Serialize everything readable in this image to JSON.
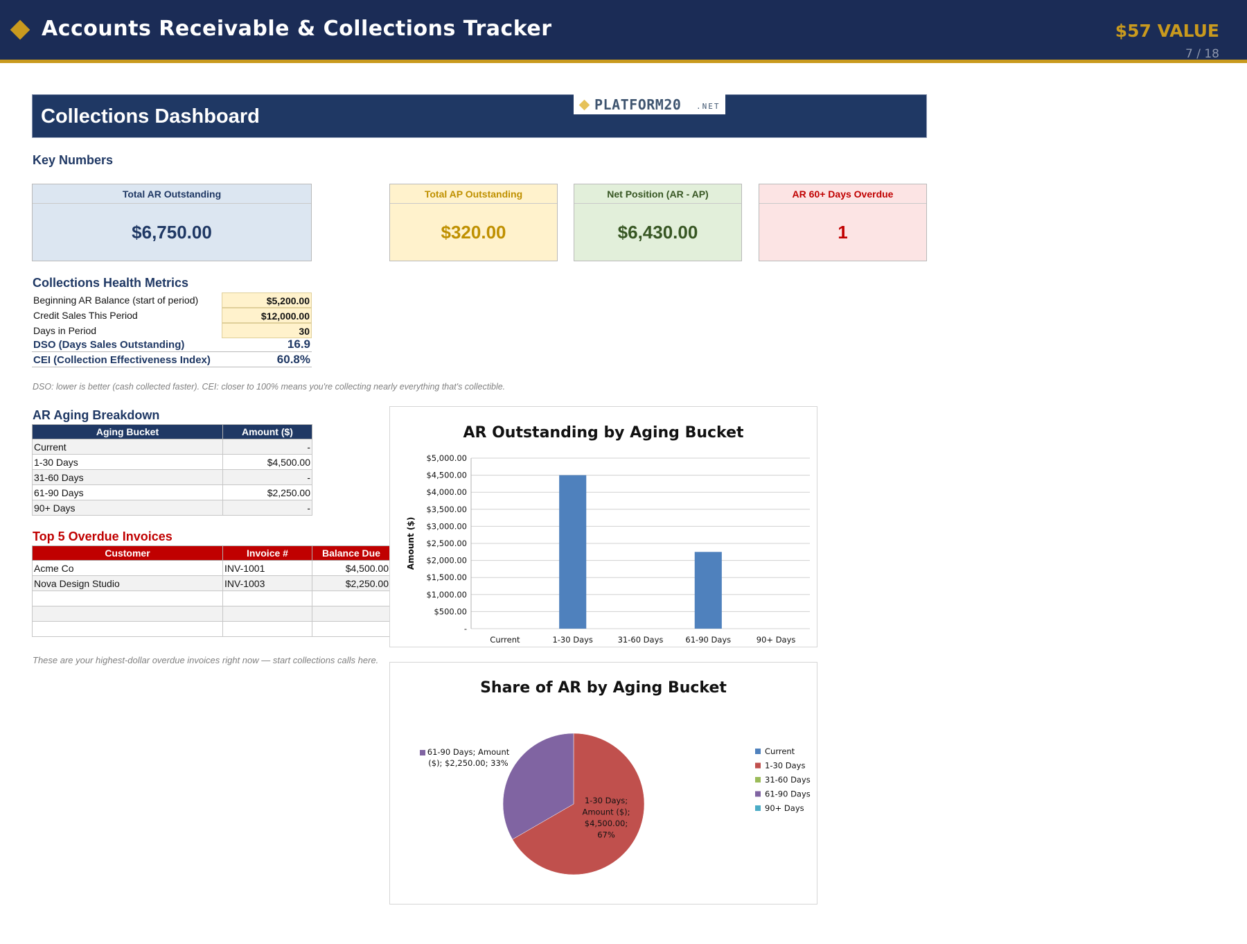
{
  "header": {
    "title": "Accounts Receivable & Collections Tracker",
    "value_tag": "$57 VALUE",
    "page_count": "7 / 18"
  },
  "dashboard": {
    "title": "Collections Dashboard",
    "logo_text": "PLATFORM20",
    "logo_suffix": ".NET"
  },
  "key_numbers": {
    "title": "Key Numbers",
    "cards": [
      {
        "label": "Total AR Outstanding",
        "value": "$6,750.00",
        "bg": "#dce6f1",
        "fg": "#1f3864"
      },
      {
        "label": "Total AP Outstanding",
        "value": "$320.00",
        "bg": "#fff2cc",
        "fg": "#bf9000"
      },
      {
        "label": "Net Position (AR - AP)",
        "value": "$6,430.00",
        "bg": "#e2efda",
        "fg": "#375623"
      },
      {
        "label": "AR 60+ Days Overdue",
        "value": "1",
        "bg": "#fce4e4",
        "fg": "#c00000"
      }
    ]
  },
  "health": {
    "title": "Collections Health Metrics",
    "rows": [
      {
        "label": "Beginning AR Balance (start of period)",
        "value": "$5,200.00"
      },
      {
        "label": "Credit Sales This Period",
        "value": "$12,000.00"
      },
      {
        "label": "Days in Period",
        "value": "30"
      }
    ],
    "dso": {
      "label": "DSO (Days Sales Outstanding)",
      "value": "16.9"
    },
    "cei": {
      "label": "CEI (Collection Effectiveness Index)",
      "value": "60.8%"
    },
    "note": "DSO: lower is better (cash collected faster). CEI: closer to 100% means you're collecting nearly everything that's collectible."
  },
  "aging": {
    "title": "AR Aging Breakdown",
    "headers": [
      "Aging Bucket",
      "Amount ($)"
    ],
    "rows": [
      {
        "bucket": "Current",
        "amount": "-"
      },
      {
        "bucket": "1-30 Days",
        "amount": "$4,500.00"
      },
      {
        "bucket": "31-60 Days",
        "amount": "-"
      },
      {
        "bucket": "61-90 Days",
        "amount": "$2,250.00"
      },
      {
        "bucket": "90+ Days",
        "amount": "-"
      }
    ]
  },
  "overdue": {
    "title": "Top 5 Overdue Invoices",
    "headers": [
      "Customer",
      "Invoice #",
      "Balance Due"
    ],
    "rows": [
      {
        "customer": "Acme Co",
        "invoice": "INV-1001",
        "balance": "$4,500.00"
      },
      {
        "customer": "Nova Design Studio",
        "invoice": "INV-1003",
        "balance": "$2,250.00"
      },
      {
        "customer": "",
        "invoice": "",
        "balance": ""
      },
      {
        "customer": "",
        "invoice": "",
        "balance": ""
      },
      {
        "customer": "",
        "invoice": "",
        "balance": ""
      }
    ],
    "note": "These are your highest-dollar overdue invoices right now — start collections calls here."
  },
  "chart_data": [
    {
      "type": "bar",
      "title": "AR Outstanding by Aging Bucket",
      "ylabel": "Amount ($)",
      "xlabel": "",
      "categories": [
        "Current",
        "1-30 Days",
        "31-60 Days",
        "61-90 Days",
        "90+ Days"
      ],
      "values": [
        0,
        4500,
        0,
        2250,
        0
      ],
      "ylim": [
        0,
        5000
      ],
      "yticks": [
        "-",
        "$500.00",
        "$1,000.00",
        "$1,500.00",
        "$2,000.00",
        "$2,500.00",
        "$3,000.00",
        "$3,500.00",
        "$4,000.00",
        "$4,500.00",
        "$5,000.00"
      ],
      "grid": true,
      "color": "#4f81bd"
    },
    {
      "type": "pie",
      "title": "Share of AR by Aging Bucket",
      "categories": [
        "Current",
        "1-30 Days",
        "31-60 Days",
        "61-90 Days",
        "90+ Days"
      ],
      "values": [
        0,
        4500,
        0,
        2250,
        0
      ],
      "colors": [
        "#4f81bd",
        "#c0504d",
        "#9bbb59",
        "#8064a2",
        "#4bacc6"
      ],
      "labels": [
        {
          "category": "1-30 Days",
          "lines": [
            "1-30 Days;",
            "Amount ($);",
            "$4,500.00;",
            "67%"
          ]
        },
        {
          "category": "61-90 Days",
          "lines": [
            "61-90 Days; Amount",
            "($); $2,250.00; 33%"
          ]
        }
      ],
      "legend": "right"
    }
  ]
}
